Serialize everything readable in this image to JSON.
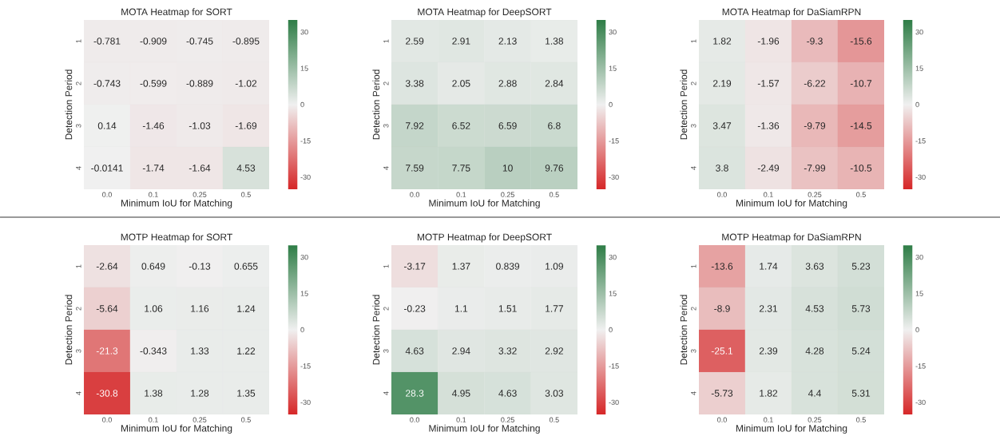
{
  "chart_data": [
    {
      "type": "heatmap",
      "title": "MOTA Heatmap for SORT",
      "xlabel": "Minimum IoU for Matching",
      "ylabel": "Detection Period",
      "categories": [
        "0.0",
        "0.1",
        "0.25",
        "0.5"
      ],
      "y_categories": [
        "1",
        "2",
        "3",
        "4"
      ],
      "cells": [
        [
          -0.781,
          -0.909,
          -0.745,
          -0.895
        ],
        [
          -0.743,
          -0.599,
          -0.889,
          -1.02
        ],
        [
          0.14,
          -1.46,
          -1.03,
          -1.69
        ],
        [
          -0.0141,
          -1.74,
          -1.64,
          4.53
        ]
      ],
      "data_labels": true,
      "clim": [
        -35,
        35
      ],
      "cticks": [
        -30,
        -15,
        0,
        15,
        30
      ]
    },
    {
      "type": "heatmap",
      "title": "MOTA Heatmap for DeepSORT",
      "xlabel": "Minimum IoU for Matching",
      "ylabel": "Detection Period",
      "categories": [
        "0.0",
        "0.1",
        "0.25",
        "0.5"
      ],
      "y_categories": [
        "1",
        "2",
        "3",
        "4"
      ],
      "cells": [
        [
          2.59,
          2.91,
          2.13,
          1.38
        ],
        [
          3.38,
          2.05,
          2.88,
          2.84
        ],
        [
          7.92,
          6.52,
          6.59,
          6.8
        ],
        [
          7.59,
          7.75,
          10,
          9.76
        ]
      ],
      "data_labels": true,
      "clim": [
        -35,
        35
      ],
      "cticks": [
        -30,
        -15,
        0,
        15,
        30
      ]
    },
    {
      "type": "heatmap",
      "title": "MOTA Heatmap for DaSiamRPN",
      "xlabel": "Minimum IoU for Matching",
      "ylabel": "Detection Period",
      "categories": [
        "0.0",
        "0.1",
        "0.25",
        "0.5"
      ],
      "y_categories": [
        "1",
        "2",
        "3",
        "4"
      ],
      "cells": [
        [
          1.82,
          -1.96,
          -9.3,
          -15.6
        ],
        [
          2.19,
          -1.57,
          -6.22,
          -10.7
        ],
        [
          3.47,
          -1.36,
          -9.79,
          -14.5
        ],
        [
          3.8,
          -2.49,
          -7.99,
          -10.5
        ]
      ],
      "data_labels": true,
      "clim": [
        -35,
        35
      ],
      "cticks": [
        -30,
        -15,
        0,
        15,
        30
      ]
    },
    {
      "type": "heatmap",
      "title": "MOTP Heatmap for SORT",
      "xlabel": "Minimum IoU for Matching",
      "ylabel": "Detection Period",
      "categories": [
        "0.0",
        "0.1",
        "0.25",
        "0.5"
      ],
      "y_categories": [
        "1",
        "2",
        "3",
        "4"
      ],
      "cells": [
        [
          -2.64,
          0.649,
          -0.13,
          0.655
        ],
        [
          -5.64,
          1.06,
          1.16,
          1.24
        ],
        [
          -21.3,
          -0.343,
          1.33,
          1.22
        ],
        [
          -30.8,
          1.38,
          1.28,
          1.35
        ]
      ],
      "data_labels": true,
      "clim": [
        -35,
        35
      ],
      "cticks": [
        -30,
        -15,
        0,
        15,
        30
      ]
    },
    {
      "type": "heatmap",
      "title": "MOTP Heatmap for DeepSORT",
      "xlabel": "Minimum IoU for Matching",
      "ylabel": "Detection Period",
      "categories": [
        "0.0",
        "0.1",
        "0.25",
        "0.5"
      ],
      "y_categories": [
        "1",
        "2",
        "3",
        "4"
      ],
      "cells": [
        [
          -3.17,
          1.37,
          0.839,
          1.09
        ],
        [
          -0.23,
          1.1,
          1.51,
          1.77
        ],
        [
          4.63,
          2.94,
          3.32,
          2.92
        ],
        [
          28.3,
          4.95,
          4.63,
          3.03
        ]
      ],
      "data_labels": true,
      "clim": [
        -35,
        35
      ],
      "cticks": [
        -30,
        -15,
        0,
        15,
        30
      ]
    },
    {
      "type": "heatmap",
      "title": "MOTP Heatmap for DaSiamRPN",
      "xlabel": "Minimum IoU for Matching",
      "ylabel": "Detection Period",
      "categories": [
        "0.0",
        "0.1",
        "0.25",
        "0.5"
      ],
      "y_categories": [
        "1",
        "2",
        "3",
        "4"
      ],
      "cells": [
        [
          -13.6,
          1.74,
          3.63,
          5.23
        ],
        [
          -8.9,
          2.31,
          4.53,
          5.73
        ],
        [
          -25.1,
          2.39,
          4.28,
          5.24
        ],
        [
          -5.73,
          1.82,
          4.4,
          5.31
        ]
      ],
      "data_labels": true,
      "clim": [
        -35,
        35
      ],
      "cticks": [
        -30,
        -15,
        0,
        15,
        30
      ]
    }
  ]
}
